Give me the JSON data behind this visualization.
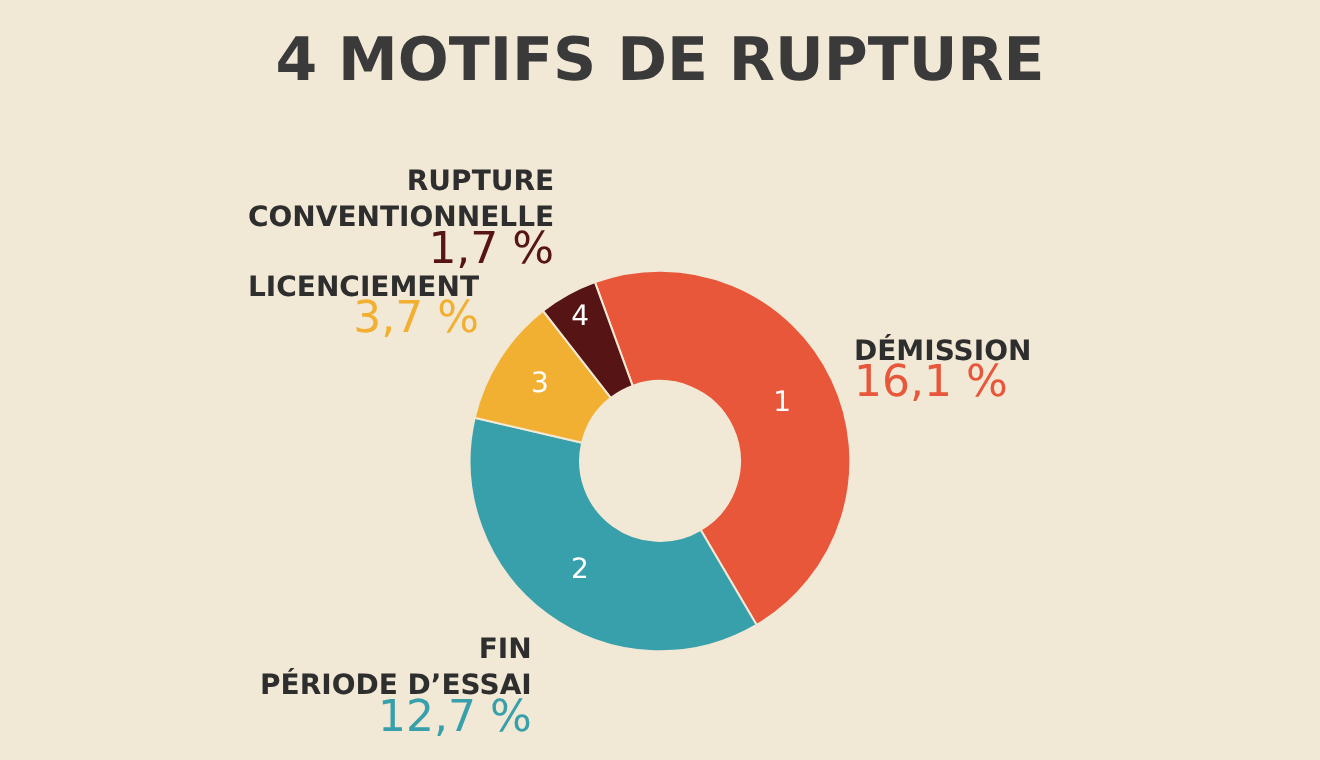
{
  "chart_data": {
    "type": "donut",
    "title": "4 MOTIFS DE RUPTURE",
    "categories": [
      "DÉMISSION",
      "FIN PÉRIODE D’ESSAI",
      "LICENCIEMENT",
      "RUPTURE CONVENTIONNELLE"
    ],
    "values": [
      16.1,
      12.7,
      3.7,
      1.7
    ],
    "value_labels": [
      "16,1 %",
      "12,7 %",
      "3,7 %",
      "1,7 %"
    ],
    "colors": [
      "#e8573a",
      "#38a0ab",
      "#f2b033",
      "#561414"
    ],
    "annotations": [
      "1",
      "2",
      "3",
      "4"
    ],
    "legend": false
  }
}
